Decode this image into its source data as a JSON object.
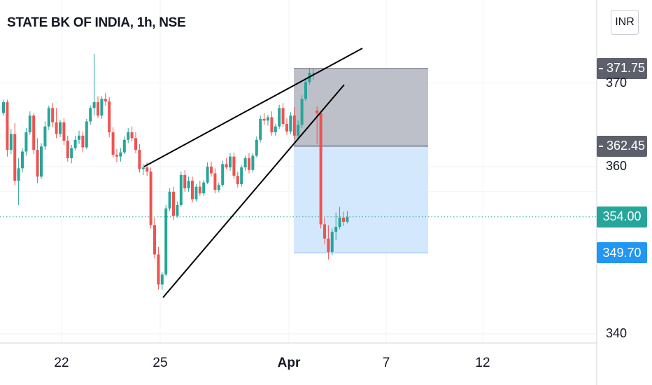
{
  "header": {
    "title": "STATE BK OF INDIA, 1h, NSE",
    "currency": "INR"
  },
  "price_tags": {
    "target": "371.75",
    "entry": "362.45",
    "last": "354.00",
    "stop": "349.70"
  },
  "colors": {
    "up": "#26a69a",
    "down": "#ef5350",
    "grey_tag": "#5d606b",
    "last_tag": "#26a69a",
    "stop_tag": "#2196f3",
    "profit_zone": "#b2b5be",
    "loss_zone": "#cfe6fd"
  },
  "chart_data": {
    "type": "candlestick",
    "symbol": "STATE BK OF INDIA",
    "interval": "1h",
    "exchange": "NSE",
    "y_axis": {
      "ticks": [
        340,
        360,
        370
      ],
      "range": [
        338,
        381
      ]
    },
    "x_axis": {
      "ticks": [
        "22",
        "25",
        "Apr",
        "7",
        "12"
      ]
    },
    "last_price": 354.0,
    "position": {
      "target": 371.75,
      "entry": 362.45,
      "stop": 349.7
    },
    "candles": [
      [
        366.4,
        368.0,
        366.1,
        367.7
      ],
      [
        367.7,
        368.0,
        361.2,
        362.0
      ],
      [
        362.0,
        364.5,
        361.5,
        363.9
      ],
      [
        363.9,
        365.2,
        357.8,
        358.3
      ],
      [
        358.3,
        361.0,
        355.4,
        359.8
      ],
      [
        359.8,
        362.2,
        359.3,
        361.8
      ],
      [
        361.8,
        364.6,
        361.3,
        364.1
      ],
      [
        364.1,
        366.6,
        363.8,
        366.1
      ],
      [
        366.1,
        366.4,
        361.5,
        362.0
      ],
      [
        362.0,
        363.4,
        358.0,
        358.8
      ],
      [
        358.8,
        362.8,
        358.5,
        362.4
      ],
      [
        362.4,
        365.4,
        362.0,
        364.8
      ],
      [
        364.8,
        367.3,
        364.4,
        367.0
      ],
      [
        367.0,
        367.6,
        364.7,
        365.3
      ],
      [
        365.3,
        367.0,
        363.4,
        363.9
      ],
      [
        363.9,
        365.6,
        363.5,
        365.3
      ],
      [
        365.3,
        365.8,
        362.6,
        363.1
      ],
      [
        363.1,
        363.7,
        360.6,
        361.0
      ],
      [
        361.0,
        362.6,
        360.4,
        362.2
      ],
      [
        362.2,
        363.7,
        361.9,
        363.2
      ],
      [
        363.2,
        364.3,
        362.7,
        363.7
      ],
      [
        363.7,
        364.2,
        361.7,
        362.3
      ],
      [
        362.3,
        365.7,
        362.1,
        365.4
      ],
      [
        365.4,
        367.3,
        365.0,
        367.0
      ],
      [
        367.0,
        373.5,
        366.1,
        367.7
      ],
      [
        367.7,
        368.4,
        365.8,
        366.1
      ],
      [
        366.1,
        368.4,
        365.7,
        368.1
      ],
      [
        368.1,
        368.8,
        367.3,
        367.8
      ],
      [
        367.8,
        368.3,
        363.5,
        364.1
      ],
      [
        364.1,
        364.7,
        361.1,
        361.4
      ],
      [
        361.4,
        362.1,
        360.5,
        361.2
      ],
      [
        361.2,
        362.2,
        360.6,
        361.7
      ],
      [
        361.7,
        363.6,
        361.5,
        363.2
      ],
      [
        363.2,
        364.6,
        362.8,
        364.1
      ],
      [
        364.1,
        364.8,
        363.0,
        363.4
      ],
      [
        363.4,
        364.1,
        361.6,
        362.0
      ],
      [
        362.0,
        362.7,
        359.3,
        359.7
      ],
      [
        359.7,
        360.3,
        359.0,
        359.9
      ],
      [
        359.9,
        360.5,
        358.9,
        359.4
      ],
      [
        359.4,
        359.9,
        352.6,
        353.0
      ],
      [
        353.0,
        353.9,
        349.0,
        349.5
      ],
      [
        349.5,
        350.4,
        345.3,
        345.9
      ],
      [
        345.9,
        347.4,
        345.3,
        347.1
      ],
      [
        347.1,
        355.4,
        346.9,
        355.0
      ],
      [
        355.0,
        357.4,
        354.7,
        357.0
      ],
      [
        357.0,
        357.6,
        353.6,
        354.1
      ],
      [
        354.1,
        355.8,
        353.9,
        355.4
      ],
      [
        355.4,
        359.4,
        355.2,
        359.0
      ],
      [
        359.0,
        359.6,
        357.0,
        357.4
      ],
      [
        357.4,
        358.8,
        357.0,
        358.3
      ],
      [
        358.3,
        358.8,
        355.7,
        356.1
      ],
      [
        356.1,
        357.9,
        355.8,
        357.6
      ],
      [
        357.6,
        358.3,
        356.5,
        356.8
      ],
      [
        356.8,
        358.4,
        356.5,
        358.1
      ],
      [
        358.1,
        360.5,
        357.9,
        360.0
      ],
      [
        360.0,
        360.6,
        358.8,
        359.2
      ],
      [
        359.2,
        359.8,
        356.8,
        357.2
      ],
      [
        357.2,
        358.1,
        356.9,
        357.8
      ],
      [
        357.8,
        360.7,
        357.6,
        360.3
      ],
      [
        360.3,
        361.0,
        359.7,
        359.9
      ],
      [
        359.9,
        361.6,
        359.5,
        361.2
      ],
      [
        361.2,
        361.7,
        358.5,
        358.9
      ],
      [
        358.9,
        359.4,
        357.5,
        357.9
      ],
      [
        357.9,
        360.2,
        357.6,
        359.9
      ],
      [
        359.9,
        361.3,
        359.5,
        361.0
      ],
      [
        361.0,
        361.6,
        359.2,
        359.6
      ],
      [
        359.6,
        361.6,
        359.3,
        361.3
      ],
      [
        361.3,
        363.6,
        361.1,
        363.2
      ],
      [
        363.2,
        366.1,
        362.9,
        365.7
      ],
      [
        365.7,
        366.4,
        365.0,
        365.5
      ],
      [
        365.5,
        366.2,
        364.9,
        365.9
      ],
      [
        365.9,
        366.6,
        363.7,
        364.1
      ],
      [
        364.1,
        365.1,
        363.7,
        364.8
      ],
      [
        364.8,
        367.4,
        364.5,
        367.0
      ],
      [
        367.0,
        367.6,
        364.7,
        365.1
      ],
      [
        365.1,
        365.8,
        363.8,
        364.2
      ],
      [
        364.2,
        366.5,
        363.9,
        366.1
      ],
      [
        366.1,
        367.1,
        363.3,
        363.7
      ],
      [
        363.7,
        365.5,
        363.4,
        365.0
      ],
      [
        365.0,
        368.5,
        364.6,
        368.1
      ],
      [
        368.1,
        370.5,
        367.8,
        370.1
      ],
      [
        370.1,
        371.8,
        369.8,
        371.2
      ],
      [
        371.2,
        371.7,
        370.4,
        371.2
      ],
      [
        366.7,
        367.2,
        362.7,
        366.4
      ],
      [
        366.4,
        366.7,
        352.6,
        353.1
      ],
      [
        353.1,
        353.9,
        350.7,
        351.4
      ],
      [
        351.4,
        353.0,
        348.9,
        349.8
      ],
      [
        349.8,
        352.6,
        349.4,
        352.2
      ],
      [
        352.2,
        354.5,
        351.2,
        352.8
      ],
      [
        352.8,
        355.2,
        352.5,
        353.9
      ],
      [
        353.9,
        354.6,
        352.9,
        353.4
      ],
      [
        353.4,
        354.7,
        353.2,
        354.0
      ]
    ],
    "drawings": [
      "rising wedge upper trendline",
      "rising wedge lower trendline",
      "long position tool"
    ]
  }
}
